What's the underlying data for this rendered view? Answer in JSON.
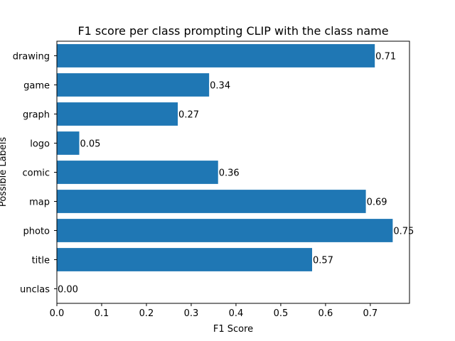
{
  "chart_data": {
    "type": "bar",
    "orientation": "horizontal",
    "title": "F1 score per class prompting CLIP with the class name",
    "xlabel": "F1 Score",
    "ylabel": "Possible Labels",
    "categories": [
      "drawing",
      "game",
      "graph",
      "logo",
      "comic",
      "map",
      "photo",
      "title",
      "unclas"
    ],
    "values": [
      0.71,
      0.34,
      0.27,
      0.05,
      0.36,
      0.69,
      0.75,
      0.57,
      0.0
    ],
    "value_labels": [
      "0.71",
      "0.34",
      "0.27",
      "0.05",
      "0.36",
      "0.69",
      "0.75",
      "0.57",
      "0.00"
    ],
    "xticks": [
      "0.0",
      "0.1",
      "0.2",
      "0.3",
      "0.4",
      "0.5",
      "0.6",
      "0.7"
    ],
    "xlim": [
      0,
      0.7875
    ],
    "grid": false,
    "colors": {
      "bar": "#1f77b4",
      "axes": "#000000"
    }
  }
}
